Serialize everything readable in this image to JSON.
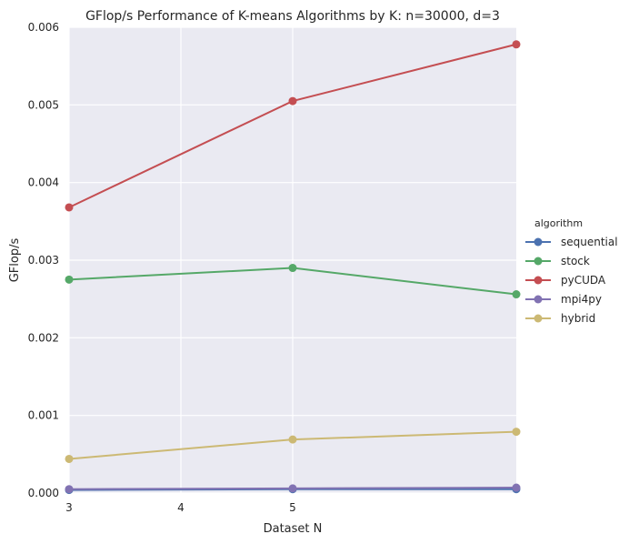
{
  "chart_data": {
    "type": "line",
    "title": "GFlop/s Performance of K-means Algorithms by K: n=30000, d=3",
    "xlabel": "Dataset N",
    "ylabel": "GFlop/s",
    "x": [
      3,
      5,
      7
    ],
    "xlim": [
      3,
      7
    ],
    "xticks": [
      "3",
      "4",
      "5"
    ],
    "ylim": [
      0,
      0.006
    ],
    "yticks": [
      "0.000",
      "0.001",
      "0.002",
      "0.003",
      "0.004",
      "0.005",
      "0.006"
    ],
    "grid": true,
    "legend": {
      "title": "algorithm",
      "placement": "right"
    },
    "series": [
      {
        "name": "sequential",
        "color": "#4c72b0",
        "values": [
          4e-05,
          5e-05,
          5e-05
        ]
      },
      {
        "name": "stock",
        "color": "#55a868",
        "values": [
          0.00275,
          0.0029,
          0.00256
        ]
      },
      {
        "name": "pyCUDA",
        "color": "#c44e52",
        "values": [
          0.00368,
          0.00505,
          0.00578
        ]
      },
      {
        "name": "mpi4py",
        "color": "#8172b2",
        "values": [
          5e-05,
          6e-05,
          7e-05
        ]
      },
      {
        "name": "hybrid",
        "color": "#ccb974",
        "values": [
          0.00044,
          0.00069,
          0.00079
        ]
      }
    ]
  }
}
